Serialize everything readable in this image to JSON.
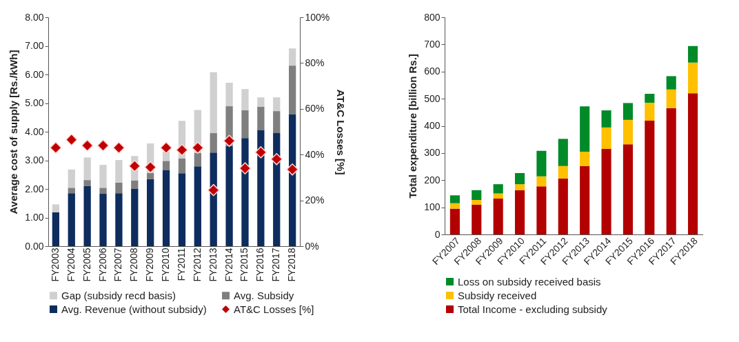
{
  "chart_data": [
    {
      "type": "bar",
      "stacked": true,
      "ylabel": "Average cost of supply [Rs./kWh]",
      "y2label": "AT&C Losses [%]",
      "categories": [
        "FY2003",
        "FY2004",
        "FY2005",
        "FY2006",
        "FY2007",
        "FY2008",
        "FY2009",
        "FY2010",
        "FY2011",
        "FY2012",
        "FY2013",
        "FY2014",
        "FY2015",
        "FY2016",
        "FY2017",
        "FY2018"
      ],
      "series": [
        {
          "name": "Avg. Revenue (without subsidy)",
          "color": "#0e2d5e",
          "values": [
            1.18,
            1.85,
            2.1,
            1.83,
            1.85,
            2.0,
            2.34,
            2.65,
            2.55,
            2.79,
            3.27,
            3.5,
            3.78,
            4.05,
            3.95,
            4.6
          ]
        },
        {
          "name": "Avg. Subsidy",
          "color": "#7f7f7f",
          "values": [
            0,
            0.19,
            0.21,
            0.21,
            0.37,
            0.3,
            0.22,
            0.33,
            0.51,
            0.47,
            0.68,
            1.39,
            0.97,
            0.82,
            0.77,
            1.71
          ]
        },
        {
          "name": "Gap (subsidy recd basis)",
          "color": "#d0d0d0",
          "values": [
            0.28,
            0.64,
            0.79,
            0.8,
            0.79,
            0.85,
            1.03,
            0.32,
            1.32,
            1.5,
            2.13,
            0.82,
            0.74,
            0.33,
            0.48,
            0.6
          ]
        },
        {
          "name": "AT&C Losses [%]",
          "type": "scatter",
          "axis": "y2",
          "marker": "diamond",
          "color": "#c00000",
          "values": [
            43,
            46.5,
            44,
            44,
            43,
            35,
            34.5,
            43,
            42,
            43,
            24.5,
            46,
            34,
            41,
            38,
            33.5
          ]
        }
      ],
      "ylim": [
        0,
        8
      ],
      "yticks": [
        {
          "value": 0,
          "label": "0.00"
        },
        {
          "value": 1,
          "label": "1.00"
        },
        {
          "value": 2,
          "label": "2.00"
        },
        {
          "value": 3,
          "label": "3.00"
        },
        {
          "value": 4,
          "label": "4.00"
        },
        {
          "value": 5,
          "label": "5.00"
        },
        {
          "value": 6,
          "label": "6.00"
        },
        {
          "value": 7,
          "label": "7.00"
        },
        {
          "value": 8,
          "label": "8.00"
        }
      ],
      "y2lim": [
        0,
        100
      ],
      "y2ticks": [
        {
          "value": 0,
          "label": "0%"
        },
        {
          "value": 20,
          "label": "20%"
        },
        {
          "value": 40,
          "label": "40%"
        },
        {
          "value": 60,
          "label": "60%"
        },
        {
          "value": 80,
          "label": "80%"
        },
        {
          "value": 100,
          "label": "100%"
        }
      ],
      "legend": "bottom",
      "grid": false
    },
    {
      "type": "bar",
      "stacked": true,
      "ylabel": "Total expenditure [billion Rs.]",
      "categories": [
        "FY2007",
        "FY2008",
        "FY2009",
        "FY2010",
        "FY2011",
        "FY2012",
        "FY2013",
        "FY2014",
        "FY2015",
        "FY2016",
        "FY2017",
        "FY2018"
      ],
      "series": [
        {
          "name": "Total Income - excluding subsidy",
          "color": "#b30000",
          "values": [
            95,
            110,
            132,
            163,
            177,
            206,
            252,
            315,
            332,
            419,
            465,
            520
          ]
        },
        {
          "name": "Subsidy received",
          "color": "#ffc000",
          "values": [
            20,
            17,
            19,
            22,
            37,
            46,
            53,
            79,
            90,
            66,
            69,
            113
          ]
        },
        {
          "name": "Loss on subsidy received basis",
          "color": "#008a28",
          "values": [
            29,
            36,
            34,
            41,
            94,
            100,
            167,
            63,
            62,
            33,
            49,
            61
          ]
        }
      ],
      "ylim": [
        0,
        800
      ],
      "yticks": [
        0,
        100,
        200,
        300,
        400,
        500,
        600,
        700,
        800
      ],
      "legend": "bottom",
      "grid": false
    }
  ]
}
